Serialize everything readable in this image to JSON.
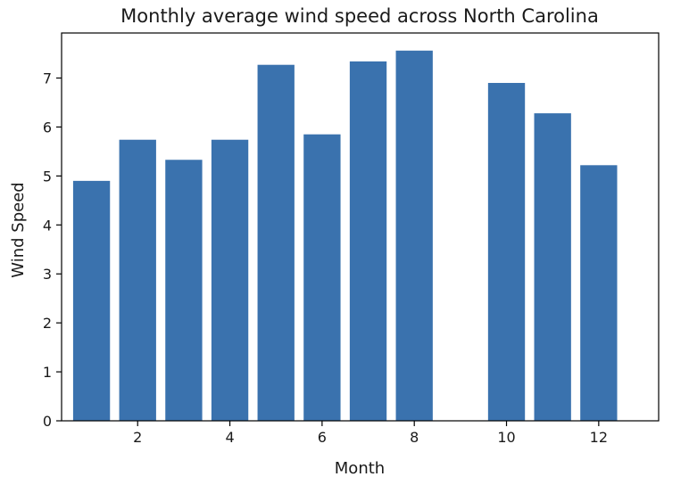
{
  "chart_data": {
    "type": "bar",
    "title": "Monthly average wind speed across North Carolina",
    "xlabel": "Month",
    "ylabel": "Wind Speed",
    "x": [
      1,
      2,
      3,
      4,
      5,
      6,
      7,
      8,
      10,
      11,
      12
    ],
    "values": [
      4.9,
      5.74,
      5.33,
      5.74,
      7.27,
      5.85,
      7.34,
      7.56,
      6.9,
      6.28,
      5.22
    ],
    "xlim": [
      0.35,
      13.3
    ],
    "ylim": [
      0,
      7.92
    ],
    "xticks": [
      2,
      4,
      6,
      8,
      10,
      12
    ],
    "yticks": [
      0,
      1,
      2,
      3,
      4,
      5,
      6,
      7
    ],
    "bar_width": 0.8,
    "bar_color": "#3a72ae",
    "grid": false
  }
}
